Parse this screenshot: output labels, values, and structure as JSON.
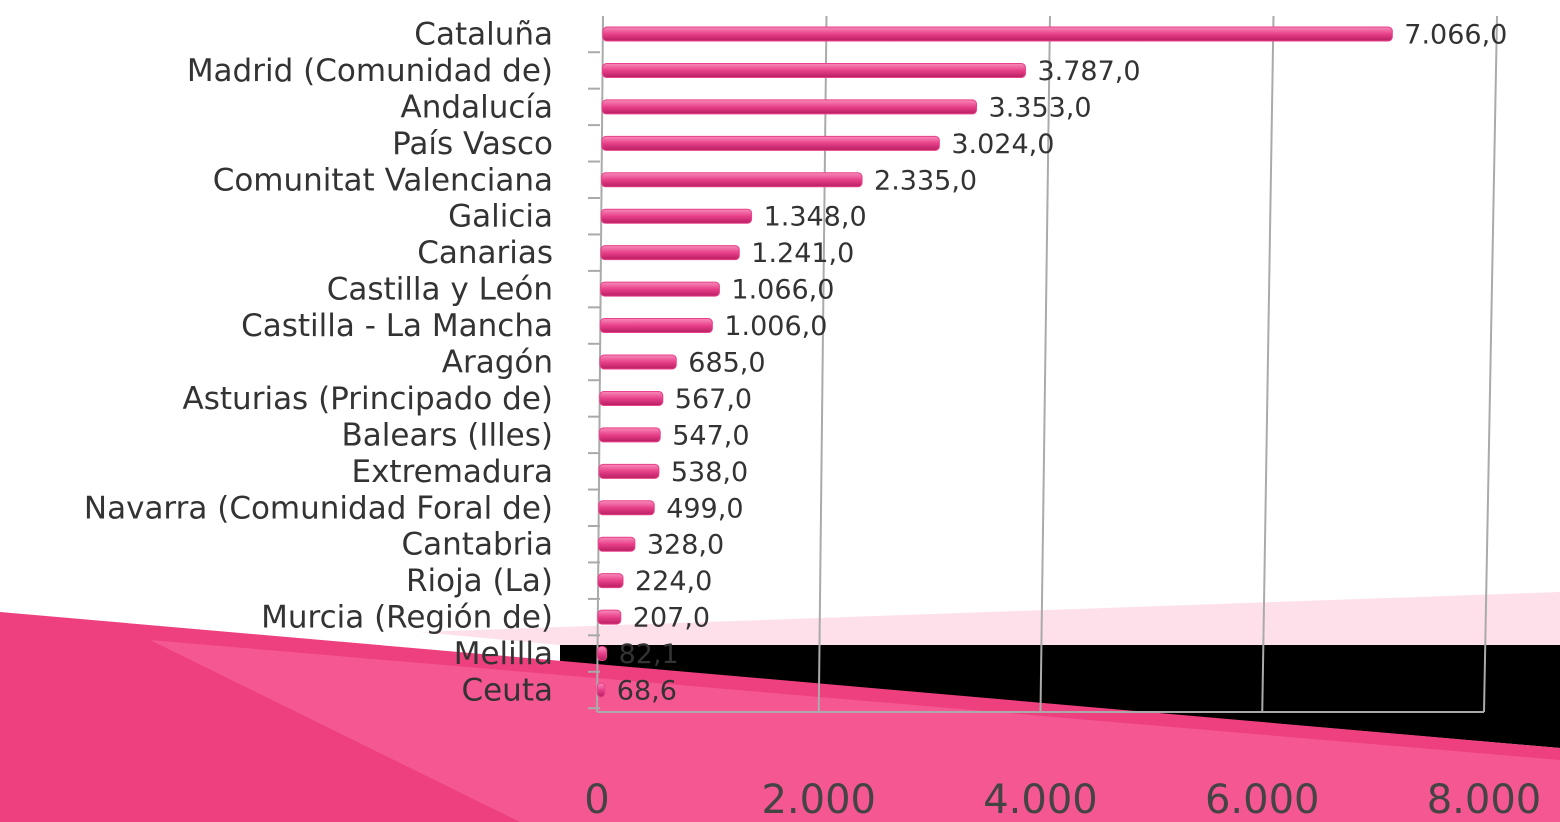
{
  "chart_data": {
    "type": "bar",
    "orientation": "horizontal",
    "categories": [
      "Cataluña",
      "Madrid (Comunidad de)",
      "Andalucía",
      "País Vasco",
      "Comunitat Valenciana",
      "Galicia",
      "Canarias",
      "Castilla y León",
      "Castilla - La Mancha",
      "Aragón",
      "Asturias (Principado de)",
      "Balears (Illes)",
      "Extremadura",
      "Navarra (Comunidad Foral de)",
      "Cantabria",
      "Rioja (La)",
      "Murcia (Región de)",
      "Melilla",
      "Ceuta"
    ],
    "values": [
      7066,
      3787,
      3353,
      3024,
      2335,
      1348,
      1241,
      1066,
      1006,
      685,
      567,
      547,
      538,
      499,
      328,
      224,
      207,
      82.1,
      68.6
    ],
    "value_labels": [
      "7.066,0",
      "3.787,0",
      "3.353,0",
      "3.024,0",
      "2.335,0",
      "1.348,0",
      "1.241,0",
      "1.066,0",
      "1.006,0",
      "685,0",
      "567,0",
      "547,0",
      "538,0",
      "499,0",
      "328,0",
      "224,0",
      "207,0",
      "82,1",
      "68,6"
    ],
    "color": "#e8408a",
    "xlim": [
      0,
      8000
    ],
    "xticks": [
      0,
      {
        "value": 2000,
        "label": "2.000"
      },
      {
        "value": 4000,
        "label": "4.000"
      },
      {
        "value": 6000,
        "label": "6.000"
      },
      {
        "value": 8000,
        "label": "8.000"
      }
    ],
    "grid": true
  }
}
